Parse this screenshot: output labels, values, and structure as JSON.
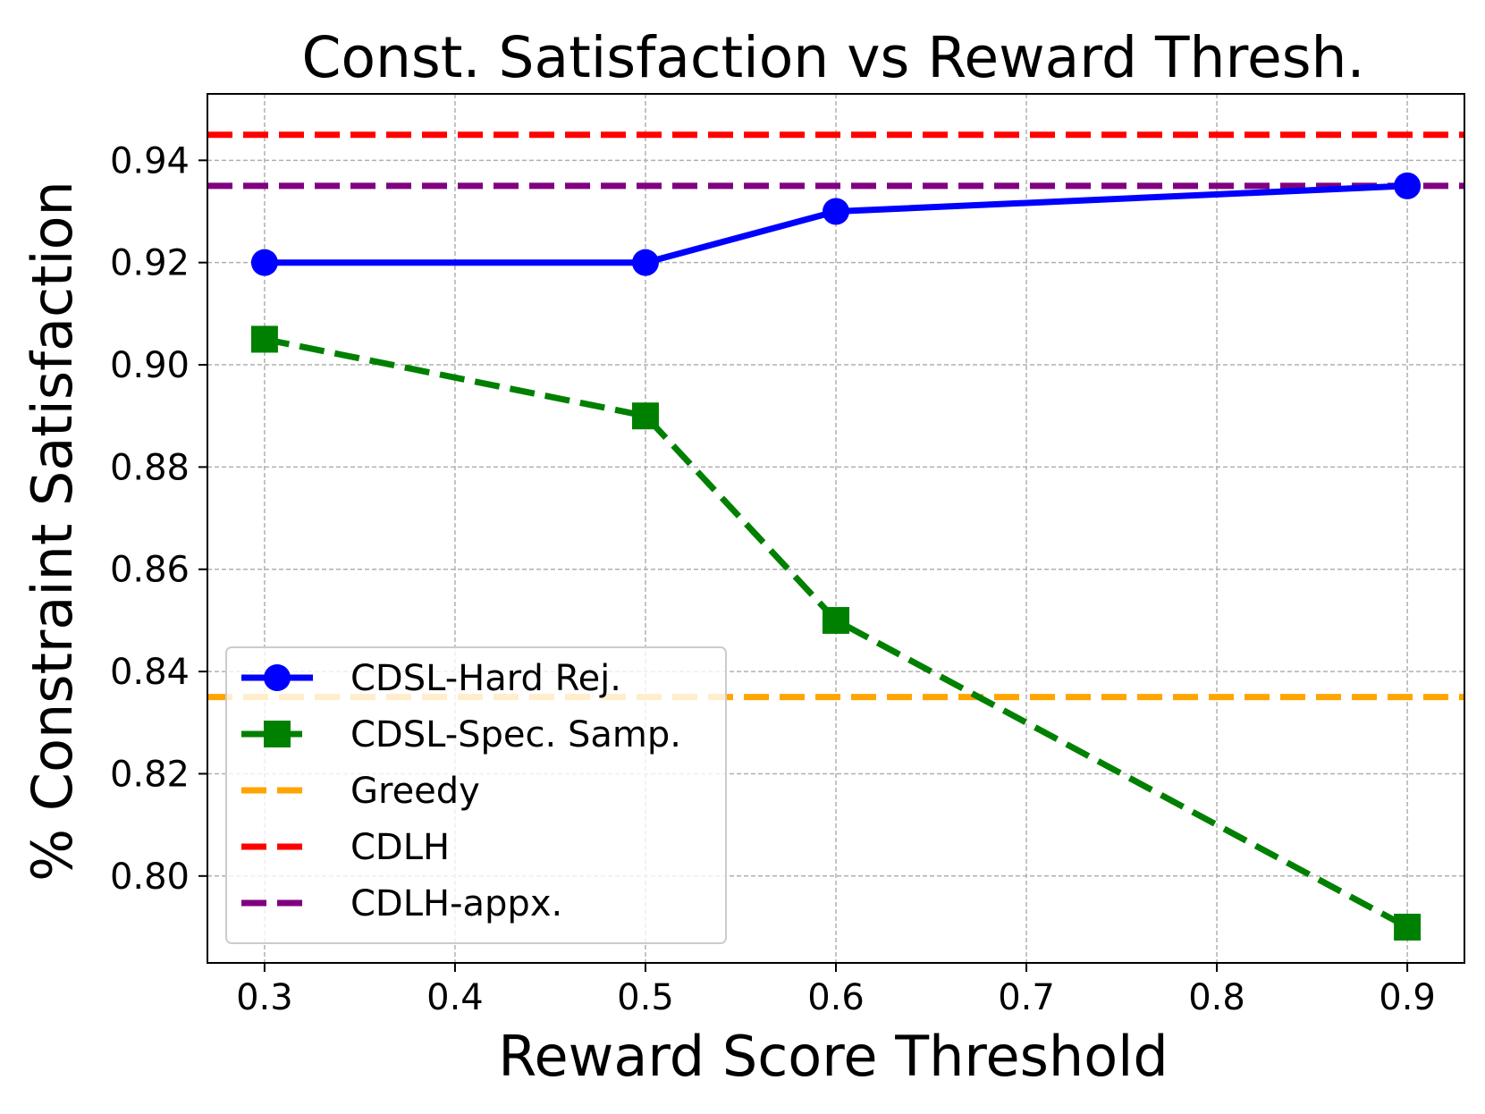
{
  "chart_data": {
    "type": "line",
    "title": "Const. Satisfaction vs Reward Thresh.",
    "xlabel": "Reward Score Threshold",
    "ylabel": "% Constraint Satisfaction",
    "xlim": [
      0.27,
      0.93
    ],
    "ylim": [
      0.783,
      0.953
    ],
    "x_ticks": [
      0.3,
      0.4,
      0.5,
      0.6,
      0.7,
      0.8,
      0.9
    ],
    "x_tick_labels": [
      "0.3",
      "0.4",
      "0.5",
      "0.6",
      "0.7",
      "0.8",
      "0.9"
    ],
    "y_ticks": [
      0.8,
      0.82,
      0.84,
      0.86,
      0.88,
      0.9,
      0.92,
      0.94
    ],
    "y_tick_labels": [
      "0.80",
      "0.82",
      "0.84",
      "0.86",
      "0.88",
      "0.90",
      "0.92",
      "0.94"
    ],
    "grid": true,
    "legend_position": "lower-left",
    "series": [
      {
        "name": "CDSL-Hard Rej.",
        "kind": "line",
        "color": "#0000ff",
        "linestyle": "solid",
        "marker": "circle",
        "x": [
          0.3,
          0.5,
          0.6,
          0.9
        ],
        "values": [
          0.92,
          0.92,
          0.93,
          0.935
        ]
      },
      {
        "name": "CDSL-Spec. Samp.",
        "kind": "line",
        "color": "#008000",
        "linestyle": "dashed",
        "marker": "square",
        "x": [
          0.3,
          0.5,
          0.6,
          0.9
        ],
        "values": [
          0.905,
          0.89,
          0.85,
          0.79
        ]
      },
      {
        "name": "Greedy",
        "kind": "hline",
        "color": "#ffa500",
        "linestyle": "dashed",
        "value": 0.835
      },
      {
        "name": "CDLH",
        "kind": "hline",
        "color": "#ff0000",
        "linestyle": "dashed",
        "value": 0.945
      },
      {
        "name": "CDLH-appx.",
        "kind": "hline",
        "color": "#800080",
        "linestyle": "dashed",
        "value": 0.935
      }
    ]
  }
}
